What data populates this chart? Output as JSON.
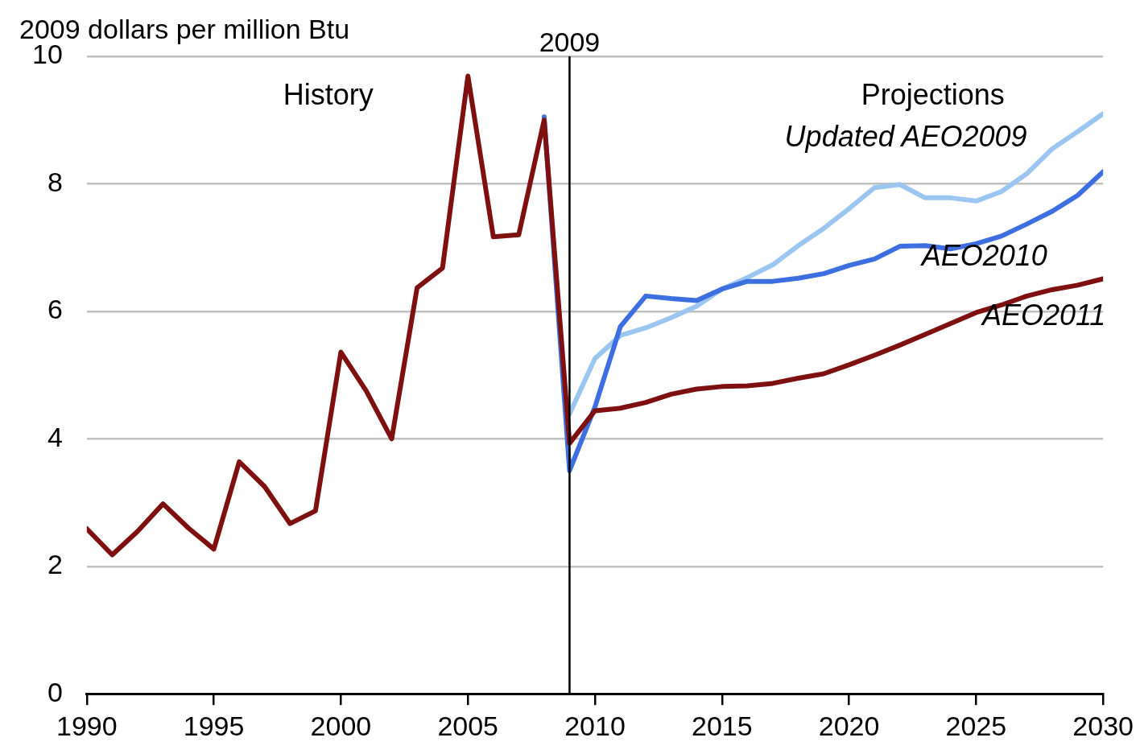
{
  "chart_data": {
    "type": "line",
    "ylabel": "2009 dollars per million Btu",
    "xlim": [
      1990,
      2030
    ],
    "xticks": [
      1990,
      1995,
      2000,
      2005,
      2010,
      2015,
      2020,
      2025,
      2030
    ],
    "ylim": [
      0,
      10
    ],
    "yticks": [
      0,
      2,
      4,
      6,
      8,
      10
    ],
    "grid": "y",
    "legend": false,
    "marker": "none",
    "line_style": "solid",
    "ref_lines": [
      {
        "axis": "x",
        "value": 2009,
        "label": "2009",
        "color": "#000000"
      }
    ],
    "annotations": [
      "History",
      "Projections"
    ],
    "series": [
      {
        "name": "AEO2011",
        "color": "#7f1010",
        "x": [
          1990,
          1991,
          1992,
          1993,
          1994,
          1995,
          1996,
          1997,
          1998,
          1999,
          2000,
          2001,
          2002,
          2003,
          2004,
          2005,
          2006,
          2007,
          2008,
          2009,
          2010,
          2011,
          2012,
          2013,
          2014,
          2015,
          2016,
          2017,
          2018,
          2019,
          2020,
          2021,
          2022,
          2023,
          2024,
          2025,
          2026,
          2027,
          2028,
          2029,
          2030
        ],
        "values": [
          2.59,
          2.18,
          2.55,
          2.98,
          2.6,
          2.27,
          3.64,
          3.25,
          2.67,
          2.87,
          5.36,
          4.75,
          4.0,
          6.37,
          6.68,
          9.69,
          7.17,
          7.2,
          9.0,
          3.93,
          4.44,
          4.48,
          4.57,
          4.7,
          4.78,
          4.82,
          4.83,
          4.87,
          4.95,
          5.02,
          5.16,
          5.31,
          5.47,
          5.64,
          5.81,
          5.98,
          6.1,
          6.24,
          6.34,
          6.41,
          6.51
        ]
      },
      {
        "name": "AEO2010",
        "color": "#3d6fe0",
        "x": [
          2008,
          2009,
          2010,
          2011,
          2012,
          2013,
          2014,
          2015,
          2016,
          2017,
          2018,
          2019,
          2020,
          2021,
          2022,
          2023,
          2024,
          2025,
          2026,
          2027,
          2028,
          2029,
          2030
        ],
        "values": [
          9.05,
          3.5,
          4.5,
          5.76,
          6.24,
          6.2,
          6.17,
          6.35,
          6.47,
          6.47,
          6.52,
          6.59,
          6.72,
          6.82,
          7.02,
          7.03,
          6.98,
          7.06,
          7.18,
          7.37,
          7.57,
          7.82,
          8.19
        ]
      },
      {
        "name": "Updated AEO2009",
        "color": "#9cc6f2",
        "x": [
          2009,
          2010,
          2011,
          2012,
          2013,
          2014,
          2015,
          2016,
          2017,
          2018,
          2019,
          2020,
          2021,
          2022,
          2023,
          2024,
          2025,
          2026,
          2027,
          2028,
          2029,
          2030
        ],
        "values": [
          4.39,
          5.26,
          5.62,
          5.74,
          5.9,
          6.08,
          6.35,
          6.53,
          6.73,
          7.03,
          7.3,
          7.61,
          7.94,
          7.99,
          7.78,
          7.78,
          7.73,
          7.88,
          8.16,
          8.55,
          8.82,
          9.1
        ]
      }
    ]
  }
}
